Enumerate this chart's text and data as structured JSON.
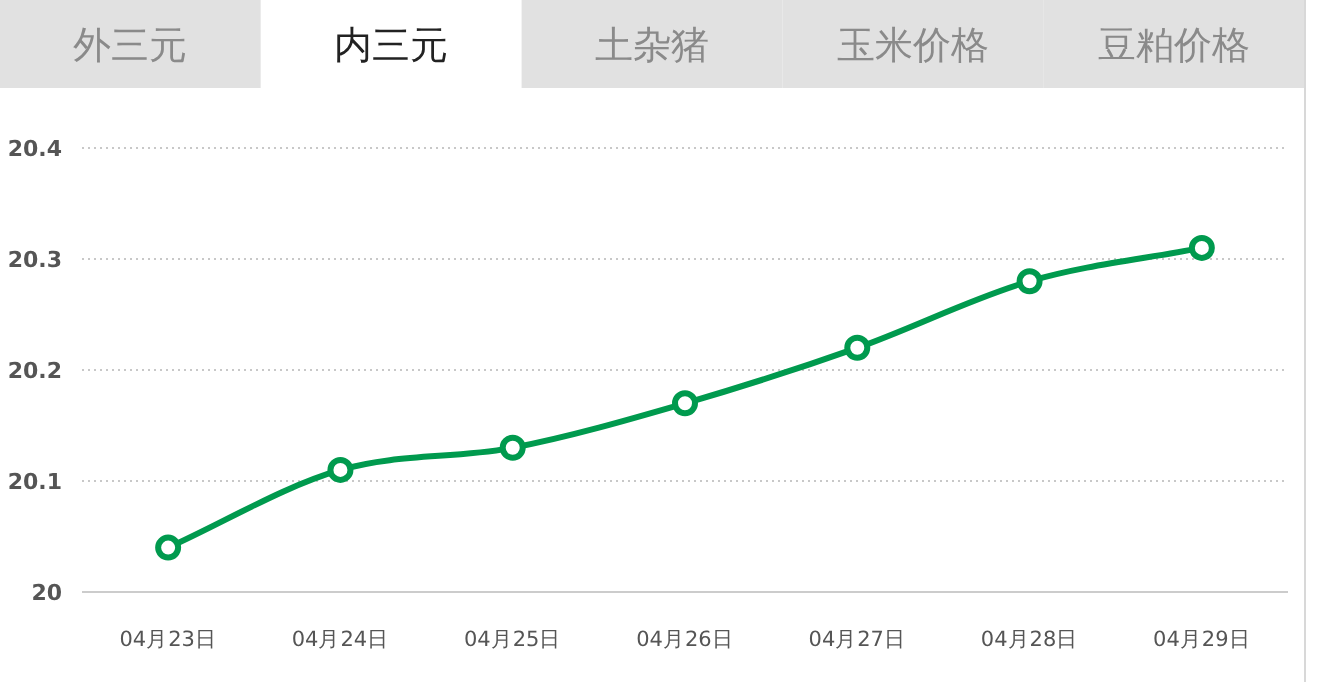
{
  "chart_data": {
    "type": "line",
    "title": "内三元",
    "annotations": [
      "外三元",
      "土杂猪",
      "玉米价格",
      "豆粕价格"
    ],
    "categories": [
      "04月23日",
      "04月24日",
      "04月25日",
      "04月26日",
      "04月27日",
      "04月28日",
      "04月29日"
    ],
    "series": [
      {
        "color": "#009a4e",
        "values": [
          20.04,
          20.11,
          20.13,
          20.17,
          20.22,
          20.28,
          20.31
        ]
      }
    ],
    "ylim": [
      20,
      20.4
    ],
    "yticks": [
      20,
      20.1,
      20.2,
      20.3,
      20.4
    ],
    "grid": "y",
    "marker": "circle",
    "line_style": "solid"
  }
}
